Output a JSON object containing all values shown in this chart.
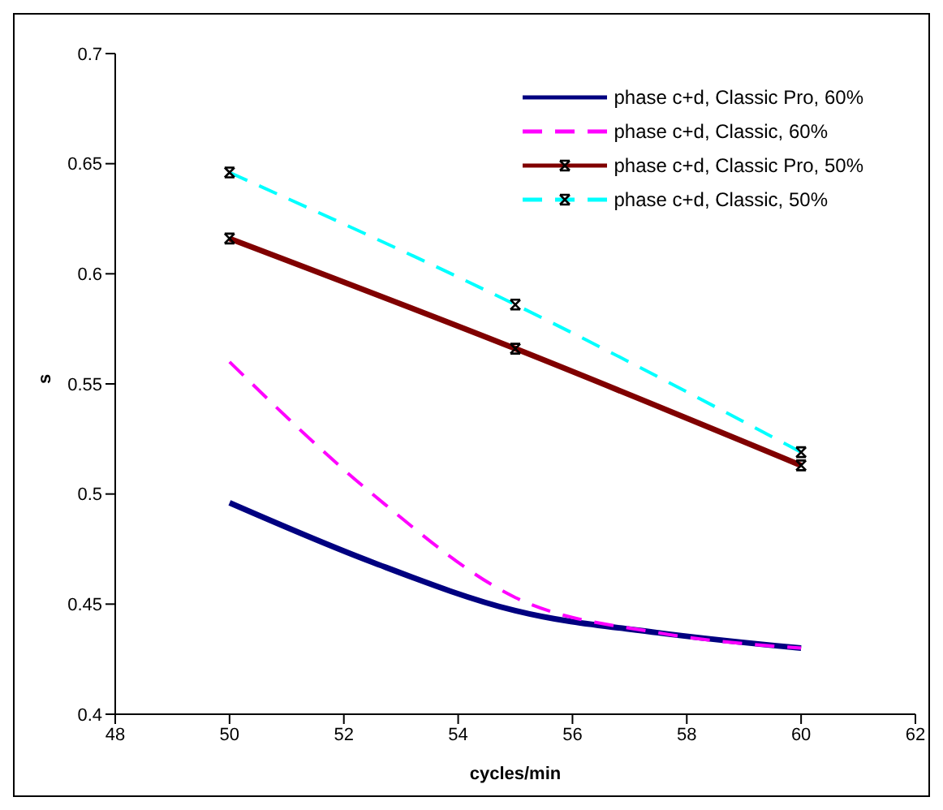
{
  "chart_data": {
    "type": "line",
    "xlabel": "cycles/min",
    "ylabel": "s",
    "xlim": [
      48,
      62
    ],
    "xticks": [
      48,
      50,
      52,
      54,
      56,
      58,
      60,
      62
    ],
    "ylim": [
      0.4,
      0.7
    ],
    "yticks": [
      0.4,
      0.45,
      0.5,
      0.55,
      0.6,
      0.65,
      0.7
    ],
    "grid": false,
    "legend": "top right",
    "series": [
      {
        "name": "phase c+d, Classic Pro, 60%",
        "color": "#000080",
        "x": [
          50,
          52.5,
          55,
          57.5,
          60
        ],
        "values": [
          0.496,
          0.469,
          0.447,
          0.437,
          0.43
        ],
        "line_style": "solid",
        "marker": "none"
      },
      {
        "name": "phase c+d, Classic, 60%",
        "color": "#ff00ff",
        "x": [
          50,
          52.5,
          55,
          57.5,
          60
        ],
        "values": [
          0.56,
          0.5,
          0.453,
          0.437,
          0.43
        ],
        "line_style": "dashed",
        "marker": "none"
      },
      {
        "name": "phase c+d, Classic Pro, 50%",
        "color": "#800000",
        "x": [
          50,
          55,
          60
        ],
        "values": [
          0.616,
          0.566,
          0.513
        ],
        "line_style": "solid",
        "marker": "cross"
      },
      {
        "name": "phase c+d, Classic, 50%",
        "color": "#00ffff",
        "x": [
          50,
          55,
          60
        ],
        "values": [
          0.646,
          0.586,
          0.519
        ],
        "line_style": "dashed",
        "marker": "cross"
      }
    ]
  }
}
